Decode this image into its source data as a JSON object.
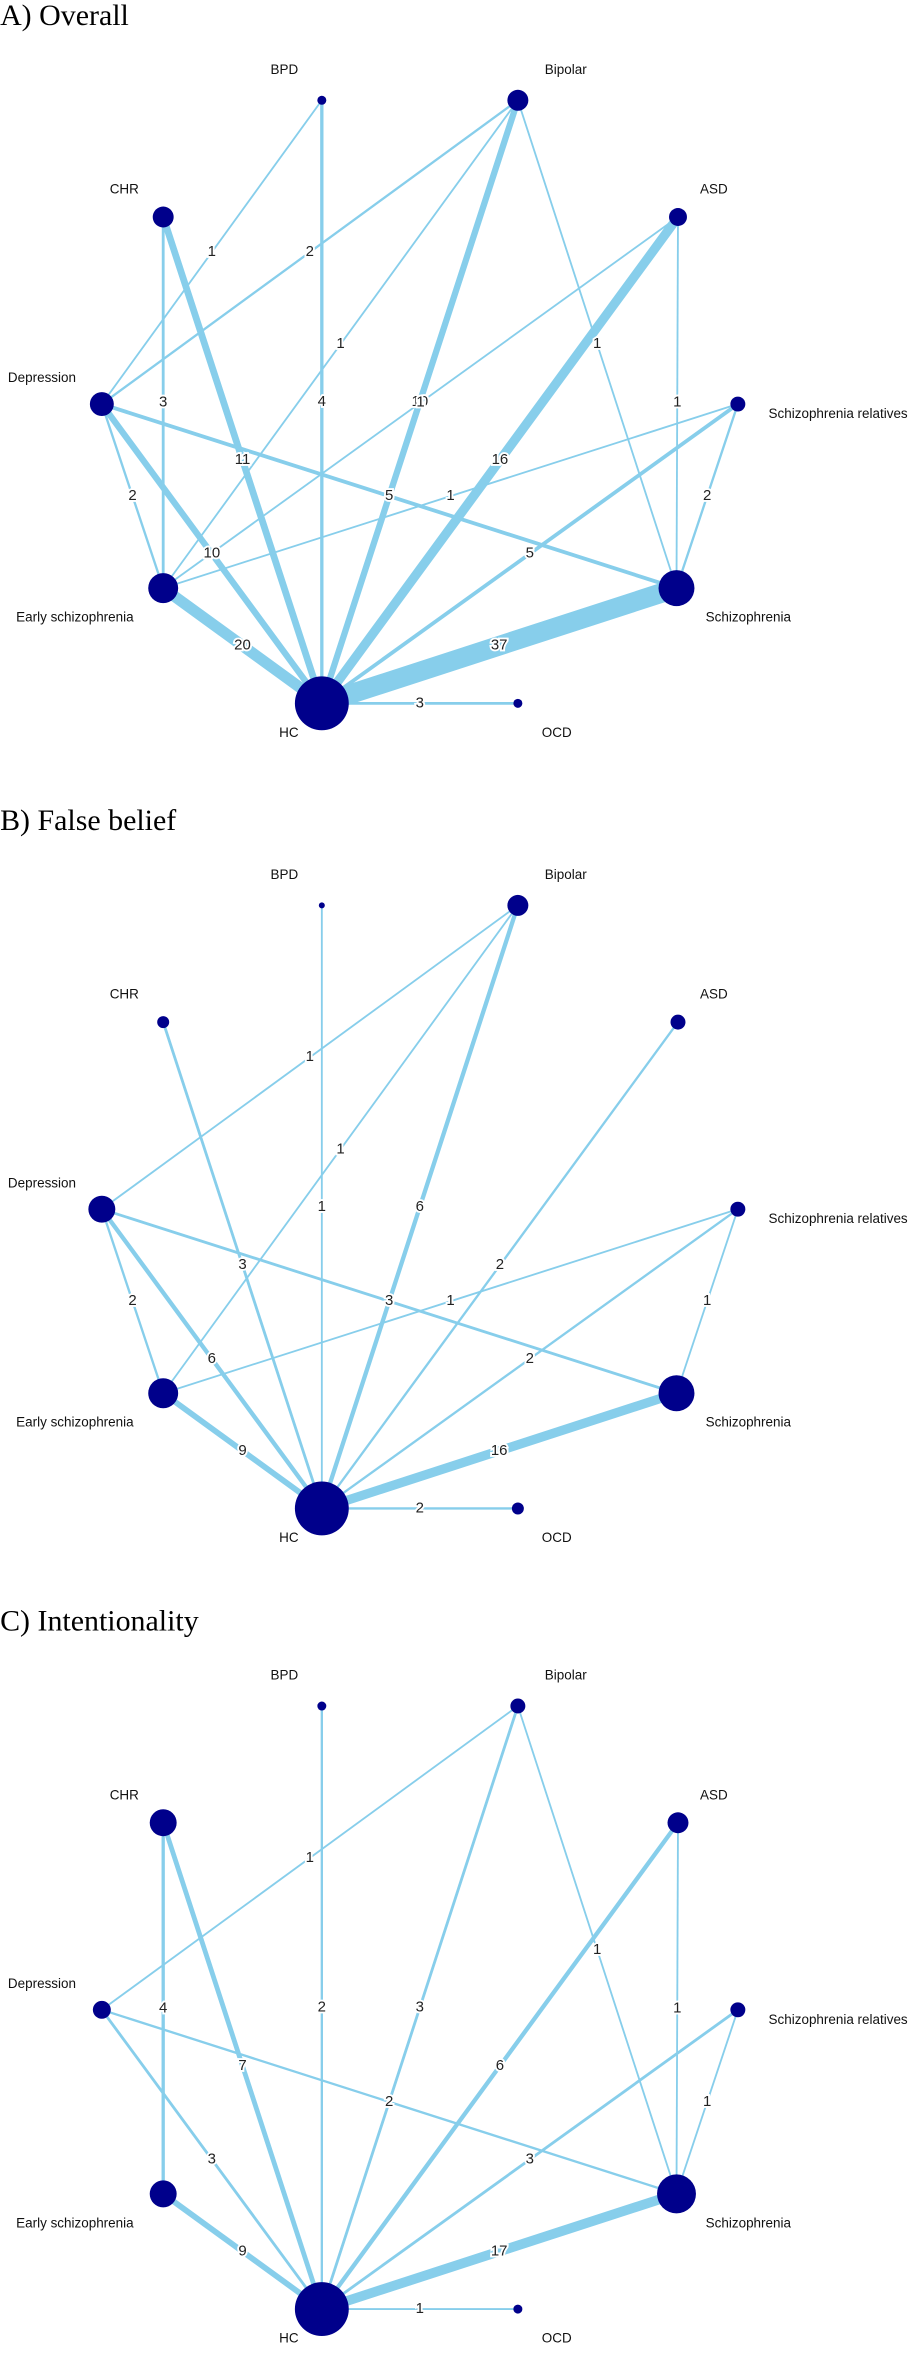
{
  "panels": [
    {
      "title": "A) Overall",
      "nodes": [
        "BPD",
        "Bipolar",
        "ASD",
        "CHR",
        "Depression",
        "Schizophrenia relatives",
        "Early schizophrenia",
        "Schizophrenia",
        "HC",
        "OCD"
      ],
      "edges": [
        {
          "between": [
            "HC",
            "Schizophrenia"
          ],
          "label": 37
        },
        {
          "between": [
            "HC",
            "Early schizophrenia"
          ],
          "label": 20
        },
        {
          "between": [
            "HC",
            "OCD"
          ],
          "label": 3
        },
        {
          "between": [
            "HC",
            "Bipolar"
          ],
          "label": 10
        },
        {
          "between": [
            "HC",
            "ASD"
          ],
          "label": 16
        },
        {
          "between": [
            "HC",
            "BPD"
          ],
          "label": 4
        },
        {
          "between": [
            "HC",
            "CHR"
          ],
          "label": 11
        },
        {
          "between": [
            "HC",
            "Depression"
          ],
          "label": 10
        },
        {
          "between": [
            "HC",
            "Schizophrenia relatives"
          ],
          "label": 5
        },
        {
          "between": [
            "CHR",
            "Early schizophrenia"
          ],
          "label": 3
        },
        {
          "between": [
            "Depression",
            "Early schizophrenia"
          ],
          "label": 2
        },
        {
          "between": [
            "Depression",
            "Schizophrenia"
          ],
          "label": 5
        },
        {
          "between": [
            "Depression",
            "BPD"
          ],
          "label": 1
        },
        {
          "between": [
            "Depression",
            "Bipolar"
          ],
          "label": 2
        },
        {
          "between": [
            "Bipolar",
            "Early schizophrenia"
          ],
          "label": 1
        },
        {
          "between": [
            "Early schizophrenia",
            "Schizophrenia relatives"
          ],
          "label": 1
        },
        {
          "between": [
            "Early schizophrenia",
            "ASD"
          ],
          "label": 1
        },
        {
          "between": [
            "Bipolar",
            "Schizophrenia"
          ],
          "label": 1
        },
        {
          "between": [
            "ASD",
            "Schizophrenia"
          ],
          "label": 1
        },
        {
          "between": [
            "Schizophrenia relatives",
            "Schizophrenia"
          ],
          "label": 2
        }
      ]
    },
    {
      "title": "B) False belief",
      "nodes": [
        "BPD",
        "Bipolar",
        "ASD",
        "CHR",
        "Depression",
        "Schizophrenia relatives",
        "Early schizophrenia",
        "Schizophrenia",
        "HC",
        "OCD"
      ],
      "edges": [
        {
          "between": [
            "HC",
            "Schizophrenia"
          ],
          "label": 16
        },
        {
          "between": [
            "HC",
            "Early schizophrenia"
          ],
          "label": 9
        },
        {
          "between": [
            "HC",
            "OCD"
          ],
          "label": 2
        },
        {
          "between": [
            "HC",
            "Bipolar"
          ],
          "label": 6
        },
        {
          "between": [
            "HC",
            "ASD"
          ],
          "label": 2
        },
        {
          "between": [
            "HC",
            "BPD"
          ],
          "label": 1
        },
        {
          "between": [
            "HC",
            "CHR"
          ],
          "label": 3
        },
        {
          "between": [
            "HC",
            "Depression"
          ],
          "label": 6
        },
        {
          "between": [
            "HC",
            "Schizophrenia relatives"
          ],
          "label": 2
        },
        {
          "between": [
            "Depression",
            "Early schizophrenia"
          ],
          "label": 2
        },
        {
          "between": [
            "Depression",
            "Schizophrenia"
          ],
          "label": 3
        },
        {
          "between": [
            "Depression",
            "Bipolar"
          ],
          "label": 1
        },
        {
          "between": [
            "Bipolar",
            "Early schizophrenia"
          ],
          "label": 1
        },
        {
          "between": [
            "Early schizophrenia",
            "Schizophrenia relatives"
          ],
          "label": 1
        },
        {
          "between": [
            "Schizophrenia relatives",
            "Schizophrenia"
          ],
          "label": 1
        }
      ]
    },
    {
      "title": "C) Intentionality",
      "nodes": [
        "BPD",
        "Bipolar",
        "ASD",
        "CHR",
        "Depression",
        "Schizophrenia relatives",
        "Early schizophrenia",
        "Schizophrenia",
        "HC",
        "OCD"
      ],
      "edges": [
        {
          "between": [
            "HC",
            "Schizophrenia"
          ],
          "label": 17
        },
        {
          "between": [
            "HC",
            "Early schizophrenia"
          ],
          "label": 9
        },
        {
          "between": [
            "HC",
            "OCD"
          ],
          "label": 1
        },
        {
          "between": [
            "HC",
            "Bipolar"
          ],
          "label": 3
        },
        {
          "between": [
            "HC",
            "ASD"
          ],
          "label": 6
        },
        {
          "between": [
            "HC",
            "BPD"
          ],
          "label": 2
        },
        {
          "between": [
            "HC",
            "CHR"
          ],
          "label": 7
        },
        {
          "between": [
            "HC",
            "Depression"
          ],
          "label": 3
        },
        {
          "between": [
            "HC",
            "Schizophrenia relatives"
          ],
          "label": 3
        },
        {
          "between": [
            "CHR",
            "Early schizophrenia"
          ],
          "label": 4
        },
        {
          "between": [
            "Depression",
            "Schizophrenia"
          ],
          "label": 2
        },
        {
          "between": [
            "Depression",
            "Bipolar"
          ],
          "label": 1
        },
        {
          "between": [
            "Bipolar",
            "Schizophrenia"
          ],
          "label": 1
        },
        {
          "between": [
            "ASD",
            "Schizophrenia"
          ],
          "label": 1
        },
        {
          "between": [
            "Schizophrenia relatives",
            "Schizophrenia"
          ],
          "label": 1
        }
      ]
    }
  ]
}
